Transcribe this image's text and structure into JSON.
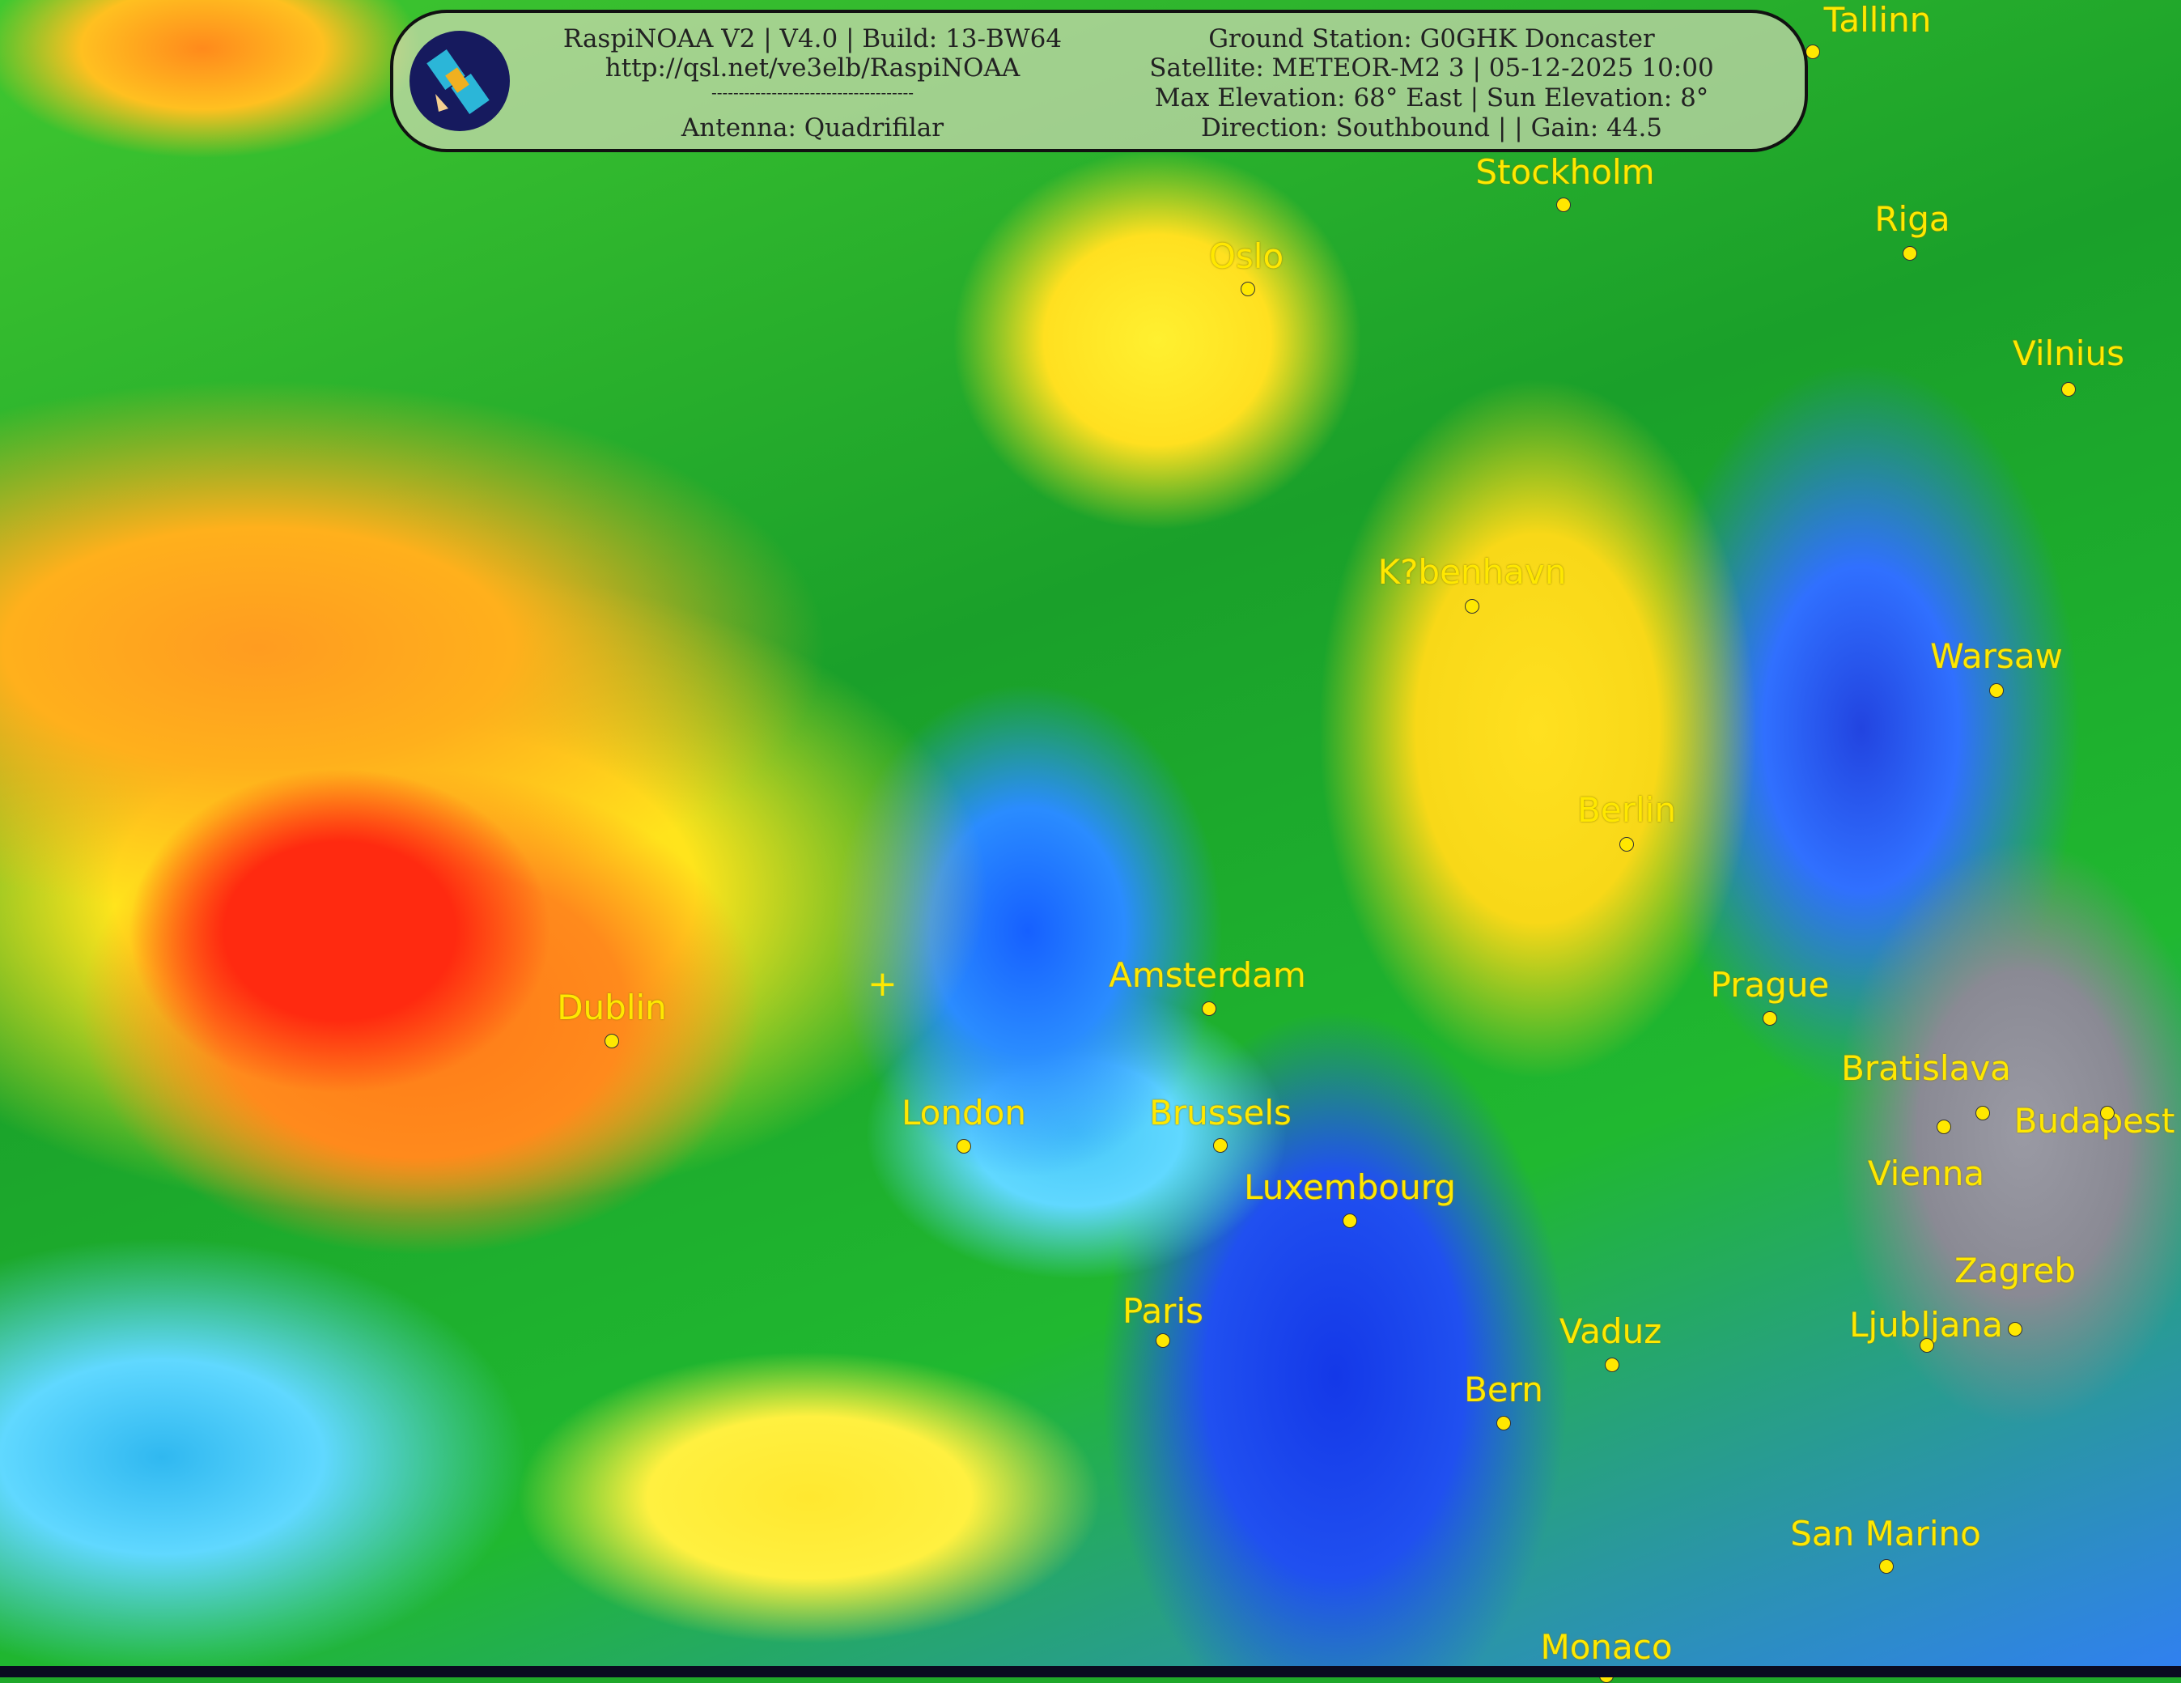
{
  "header": {
    "left": [
      "RaspiNOAA V2 | V4.0 | Build: 13-BW64",
      "http://qsl.net/ve3elb/RaspiNOAA",
      "-------------------------------------",
      "Antenna: Quadrifilar"
    ],
    "right": [
      "Ground Station: G0GHK Doncaster",
      "Satellite: METEOR-M2 3 | 05-12-2025 10:00",
      "Max Elevation: 68° East | Sun Elevation: 8°",
      "Direction: Southbound | | Gain: 44.5"
    ]
  },
  "colors": {
    "label": "#ffe800",
    "cold_cloud": "#ff2a10",
    "ocean": "#2a8cff"
  },
  "cities": [
    "Tallinn",
    "Stockholm",
    "Riga",
    "Oslo",
    "Vilnius",
    "K?benhavn",
    "Warsaw",
    "Berlin",
    "Amsterdam",
    "Prague",
    "Dublin",
    "London",
    "Brussels",
    "Bratislava",
    "Vienna",
    "Budapest",
    "Luxembourg",
    "Paris",
    "Vaduz",
    "Bern",
    "Ljubljana",
    "Zagreb",
    "San Marino",
    "Monaco"
  ]
}
